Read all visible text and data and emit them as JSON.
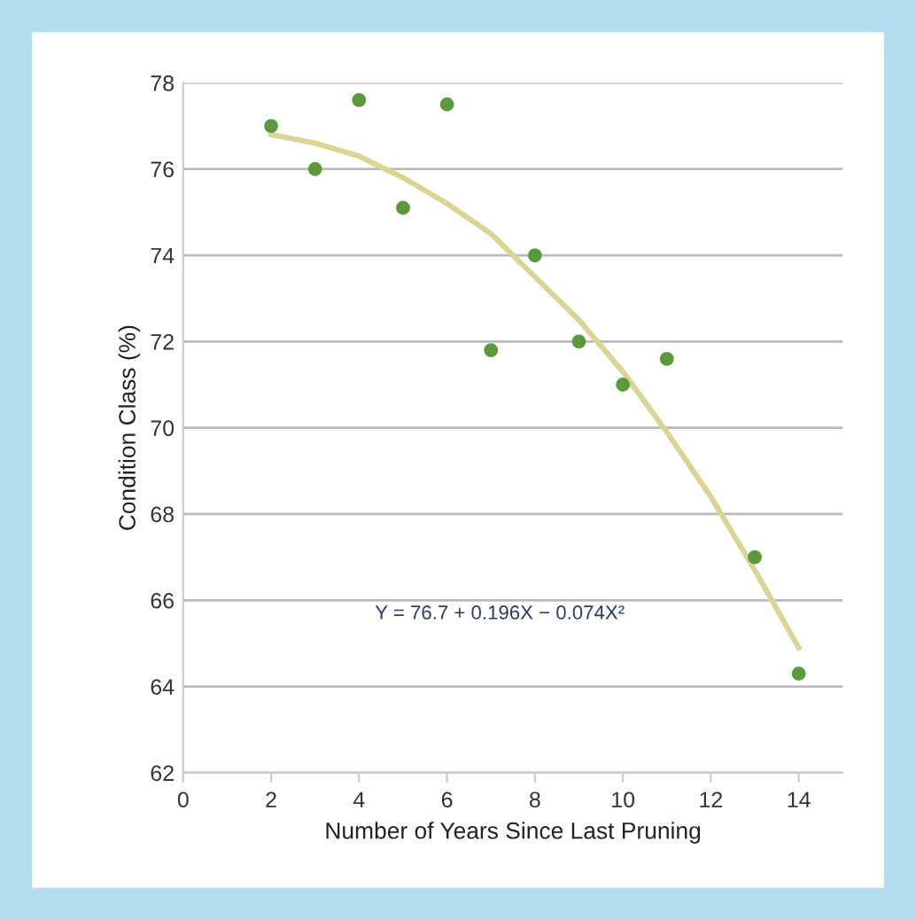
{
  "chart_data": {
    "type": "scatter",
    "xlabel": "Number of Years Since Last Pruning",
    "ylabel": "Condition Class (%)",
    "xlim": [
      0,
      15
    ],
    "xticks": [
      0,
      2,
      4,
      6,
      8,
      10,
      12,
      14
    ],
    "ylim": [
      62,
      78
    ],
    "yticks": [
      62,
      64,
      66,
      68,
      70,
      72,
      74,
      76,
      78
    ],
    "grid": "y",
    "series": [
      {
        "marker": "circle",
        "color": "#5a9a3c",
        "x": [
          2,
          3,
          4,
          5,
          6,
          7,
          8,
          9,
          10,
          11,
          13,
          14
        ],
        "values": [
          77.0,
          76.0,
          77.6,
          75.1,
          77.5,
          71.8,
          74.0,
          72.0,
          71.0,
          71.6,
          67.0,
          64.3
        ]
      },
      {
        "type": "line",
        "color": "#dcd494",
        "line_style": "solid",
        "x": [
          2,
          3,
          4,
          5,
          6,
          7,
          8,
          9,
          10,
          11,
          12,
          13,
          14
        ],
        "values": [
          76.8,
          76.6,
          76.3,
          75.8,
          75.2,
          74.5,
          73.5,
          72.5,
          71.3,
          69.9,
          68.4,
          66.7,
          64.9
        ]
      }
    ],
    "annotations": [
      "Y = 76.7 + 0.196X − 0.074X²"
    ]
  }
}
